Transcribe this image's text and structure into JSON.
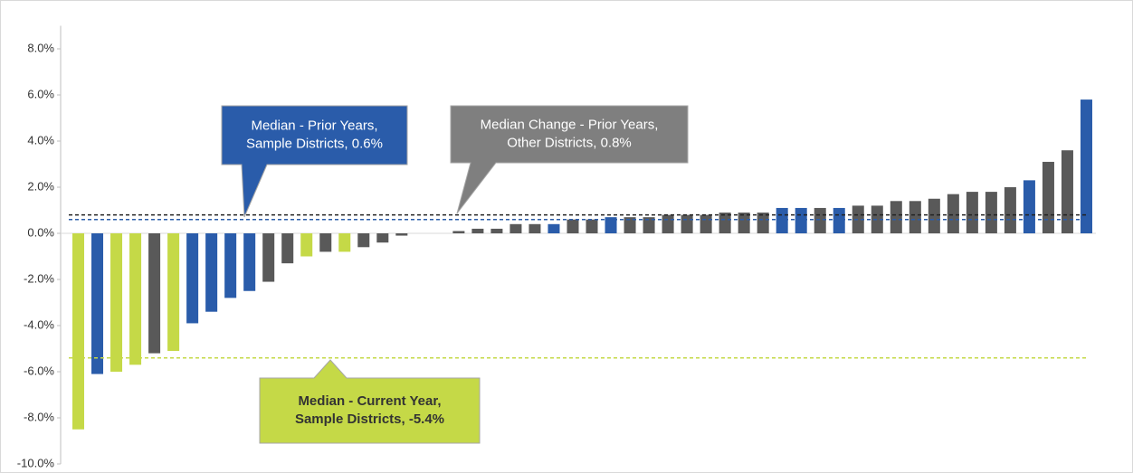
{
  "chart_data": {
    "type": "bar",
    "categories": [
      null,
      null,
      null,
      null,
      null,
      null,
      null,
      null,
      null,
      null,
      null,
      null,
      null,
      null,
      null,
      null,
      null,
      null,
      null,
      null,
      null,
      null,
      null,
      null,
      null,
      null,
      null,
      null,
      null,
      null,
      null,
      null,
      null,
      null,
      null,
      null,
      null,
      null,
      null,
      null,
      null,
      null,
      null,
      null,
      null,
      null,
      null,
      null,
      null,
      null,
      null,
      null,
      null,
      null
    ],
    "values": [
      -8.5,
      -6.1,
      -6.0,
      -5.7,
      -5.2,
      -5.1,
      -3.9,
      -3.4,
      -2.8,
      -2.5,
      -2.1,
      -1.3,
      -1.0,
      -0.8,
      -0.8,
      -0.6,
      -0.4,
      -0.1,
      0,
      0,
      0.1,
      0.2,
      0.2,
      0.4,
      0.4,
      0.4,
      0.6,
      0.6,
      0.7,
      0.7,
      0.7,
      0.8,
      0.8,
      0.8,
      0.9,
      0.9,
      0.9,
      1.1,
      1.1,
      1.1,
      1.1,
      1.2,
      1.2,
      1.4,
      1.4,
      1.5,
      1.7,
      1.8,
      1.8,
      2.0,
      2.3,
      3.1,
      3.6,
      5.8
    ],
    "colors": [
      "#c5d947",
      "#2a5caa",
      "#c5d947",
      "#c5d947",
      "#595959",
      "#c5d947",
      "#2a5caa",
      "#2a5caa",
      "#2a5caa",
      "#2a5caa",
      "#595959",
      "#595959",
      "#c5d947",
      "#595959",
      "#c5d947",
      "#595959",
      "#595959",
      "#595959",
      "#595959",
      "#595959",
      "#595959",
      "#595959",
      "#595959",
      "#595959",
      "#595959",
      "#2a5caa",
      "#595959",
      "#595959",
      "#2a5caa",
      "#595959",
      "#595959",
      "#595959",
      "#595959",
      "#595959",
      "#595959",
      "#595959",
      "#595959",
      "#2a5caa",
      "#2a5caa",
      "#595959",
      "#2a5caa",
      "#595959",
      "#595959",
      "#595959",
      "#595959",
      "#595959",
      "#595959",
      "#595959",
      "#595959",
      "#595959",
      "#2a5caa",
      "#595959",
      "#595959",
      "#2a5caa"
    ],
    "ylim": [
      -10,
      9
    ],
    "yticks": [
      {
        "value": -10,
        "label": "-10.0%"
      },
      {
        "value": -8,
        "label": "-8.0%"
      },
      {
        "value": -6,
        "label": "-6.0%"
      },
      {
        "value": -4,
        "label": "-4.0%"
      },
      {
        "value": -2,
        "label": "-2.0%"
      },
      {
        "value": 0,
        "label": "0.0%"
      },
      {
        "value": 2,
        "label": "2.0%"
      },
      {
        "value": 4,
        "label": "4.0%"
      },
      {
        "value": 6,
        "label": "6.0%"
      },
      {
        "value": 8,
        "label": "8.0%"
      }
    ],
    "reference_lines": [
      {
        "value": 0.6,
        "color": "#2a5caa",
        "lines": [
          "Median  - Prior Years,",
          "Sample Districts, 0.6%"
        ],
        "box_color": "#2a5caa",
        "text_color": "#ffffff"
      },
      {
        "value": 0.8,
        "color": "#222222",
        "lines": [
          "Median Change - Prior Years,",
          "Other Districts, 0.8%"
        ],
        "box_color": "#7f7f7f",
        "text_color": "#ffffff"
      },
      {
        "value": -5.4,
        "color": "#c5d947",
        "lines": [
          "Median - Current Year,",
          "Sample Districts, -5.4%"
        ],
        "box_color": "#c5d947",
        "text_color": "#333333"
      }
    ]
  }
}
